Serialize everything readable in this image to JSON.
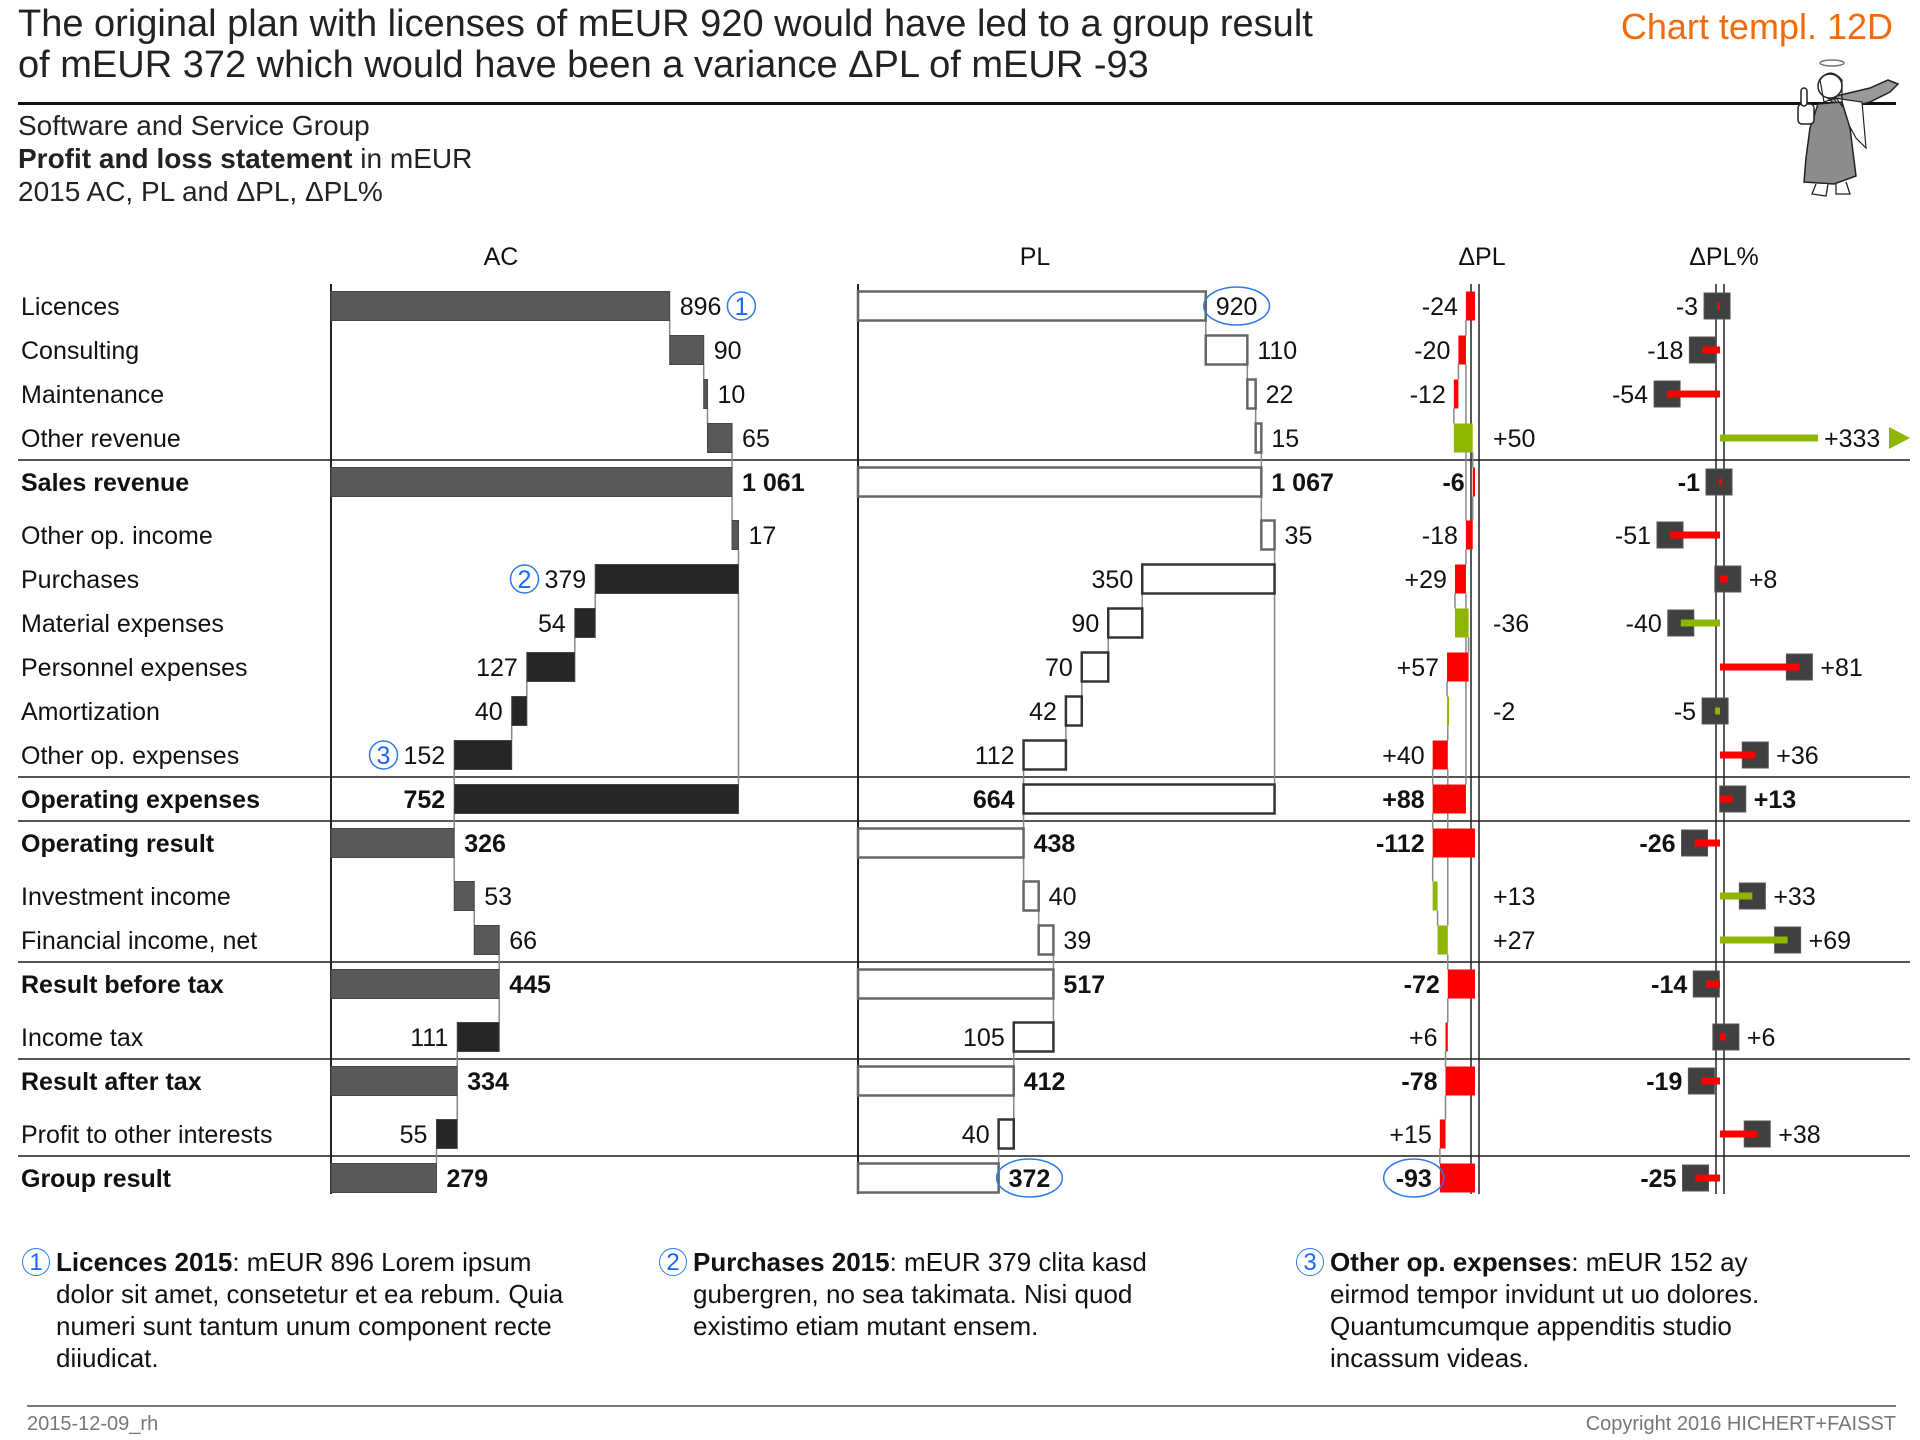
{
  "header": {
    "title_lines": [
      "The original plan with licenses of mEUR 920 would have led to a group result",
      "of mEUR 372 which would have been a variance ΔPL of mEUR -93"
    ],
    "template_tag": "Chart templ. 12D",
    "company": "Software and Service Group",
    "report_bold": "Profit and loss statement",
    "report_unit": " in mEUR",
    "period": "2015 AC, PL and ΔPL, ΔPL%",
    "illustration": "angel-thumbs-up-icon"
  },
  "chart_data": {
    "type": "table",
    "columns": [
      "AC",
      "PL",
      "ΔPL",
      "ΔPL%"
    ],
    "dpl_pct_axis_max": 100,
    "colors": {
      "ac_income": "#595959",
      "ac_expense": "#262626",
      "positive": "#8db600",
      "negative": "#ff0000",
      "pin_head": "#404040",
      "annotation": "#1a66ff"
    },
    "rows": [
      {
        "label": "Licences",
        "kind": "item",
        "type": "income",
        "ac": 896,
        "pl": 920,
        "dpl": -24,
        "dpl_pct": -3,
        "ac_marker": "1",
        "pl_highlight": true
      },
      {
        "label": "Consulting",
        "kind": "item",
        "type": "income",
        "ac": 90,
        "pl": 110,
        "dpl": -20,
        "dpl_pct": -18
      },
      {
        "label": "Maintenance",
        "kind": "item",
        "type": "income",
        "ac": 10,
        "pl": 22,
        "dpl": -12,
        "dpl_pct": -54
      },
      {
        "label": "Other revenue",
        "kind": "item",
        "type": "income",
        "ac": 65,
        "pl": 15,
        "dpl": 50,
        "dpl_pct": 333
      },
      {
        "label": "Sales revenue",
        "kind": "total",
        "type": "income",
        "ac": 1061,
        "pl": 1067,
        "dpl": -6,
        "dpl_pct": -1
      },
      {
        "label": "Other op. income",
        "kind": "item",
        "type": "income",
        "ac": 17,
        "pl": 35,
        "dpl": -18,
        "dpl_pct": -51
      },
      {
        "label": "Purchases",
        "kind": "item",
        "type": "expense",
        "ac": 379,
        "pl": 350,
        "dpl": 29,
        "dpl_pct": 8,
        "ac_marker": "2"
      },
      {
        "label": "Material expenses",
        "kind": "item",
        "type": "expense",
        "ac": 54,
        "pl": 90,
        "dpl": -36,
        "dpl_pct": -40
      },
      {
        "label": "Personnel expenses",
        "kind": "item",
        "type": "expense",
        "ac": 127,
        "pl": 70,
        "dpl": 57,
        "dpl_pct": 81
      },
      {
        "label": "Amortization",
        "kind": "item",
        "type": "expense",
        "ac": 40,
        "pl": 42,
        "dpl": -2,
        "dpl_pct": -5
      },
      {
        "label": "Other op. expenses",
        "kind": "item",
        "type": "expense",
        "ac": 152,
        "pl": 112,
        "dpl": 40,
        "dpl_pct": 36,
        "ac_marker": "3"
      },
      {
        "label": "Operating expenses",
        "kind": "subtotal",
        "type": "expense",
        "ac": 752,
        "pl": 664,
        "dpl": 88,
        "dpl_pct": 13
      },
      {
        "label": "Operating result",
        "kind": "total",
        "type": "income",
        "ac": 326,
        "pl": 438,
        "dpl": -112,
        "dpl_pct": -26
      },
      {
        "label": "Investment income",
        "kind": "item",
        "type": "income",
        "ac": 53,
        "pl": 40,
        "dpl": 13,
        "dpl_pct": 33
      },
      {
        "label": "Financial income, net",
        "kind": "item",
        "type": "income",
        "ac": 66,
        "pl": 39,
        "dpl": 27,
        "dpl_pct": 69
      },
      {
        "label": "Result before tax",
        "kind": "total",
        "type": "income",
        "ac": 445,
        "pl": 517,
        "dpl": -72,
        "dpl_pct": -14
      },
      {
        "label": "Income tax",
        "kind": "item",
        "type": "expense",
        "ac": 111,
        "pl": 105,
        "dpl": 6,
        "dpl_pct": 6
      },
      {
        "label": "Result after tax",
        "kind": "total",
        "type": "income",
        "ac": 334,
        "pl": 412,
        "dpl": -78,
        "dpl_pct": -19
      },
      {
        "label": "Profit to other interests",
        "kind": "item",
        "type": "expense",
        "ac": 55,
        "pl": 40,
        "dpl": 15,
        "dpl_pct": 38
      },
      {
        "label": "Group result",
        "kind": "total",
        "type": "income",
        "ac": 279,
        "pl": 372,
        "dpl": -93,
        "dpl_pct": -25,
        "pl_highlight": true,
        "dpl_highlight": true
      }
    ]
  },
  "footnotes": [
    {
      "num": "1",
      "title": "Licences 2015",
      "lines": [
        ": mEUR 896 Lorem ipsum",
        "dolor sit amet, consetetur et ea rebum. Quia",
        "numeri sunt tantum unum component recte",
        "diiudicat."
      ]
    },
    {
      "num": "2",
      "title": "Purchases 2015",
      "lines": [
        ": mEUR 379 clita kasd",
        "gubergren, no sea takimata. Nisi quod",
        "existimo etiam mutant ensem."
      ]
    },
    {
      "num": "3",
      "title": "Other op. expenses",
      "lines": [
        ": mEUR 152 ay",
        "eirmod tempor invidunt ut uo dolores.",
        "Quantumcumque appenditis studio",
        "incassum videas."
      ]
    }
  ],
  "footer": {
    "left": "2015-12-09_rh",
    "right": "Copyright 2016 HICHERT+FAISST"
  }
}
